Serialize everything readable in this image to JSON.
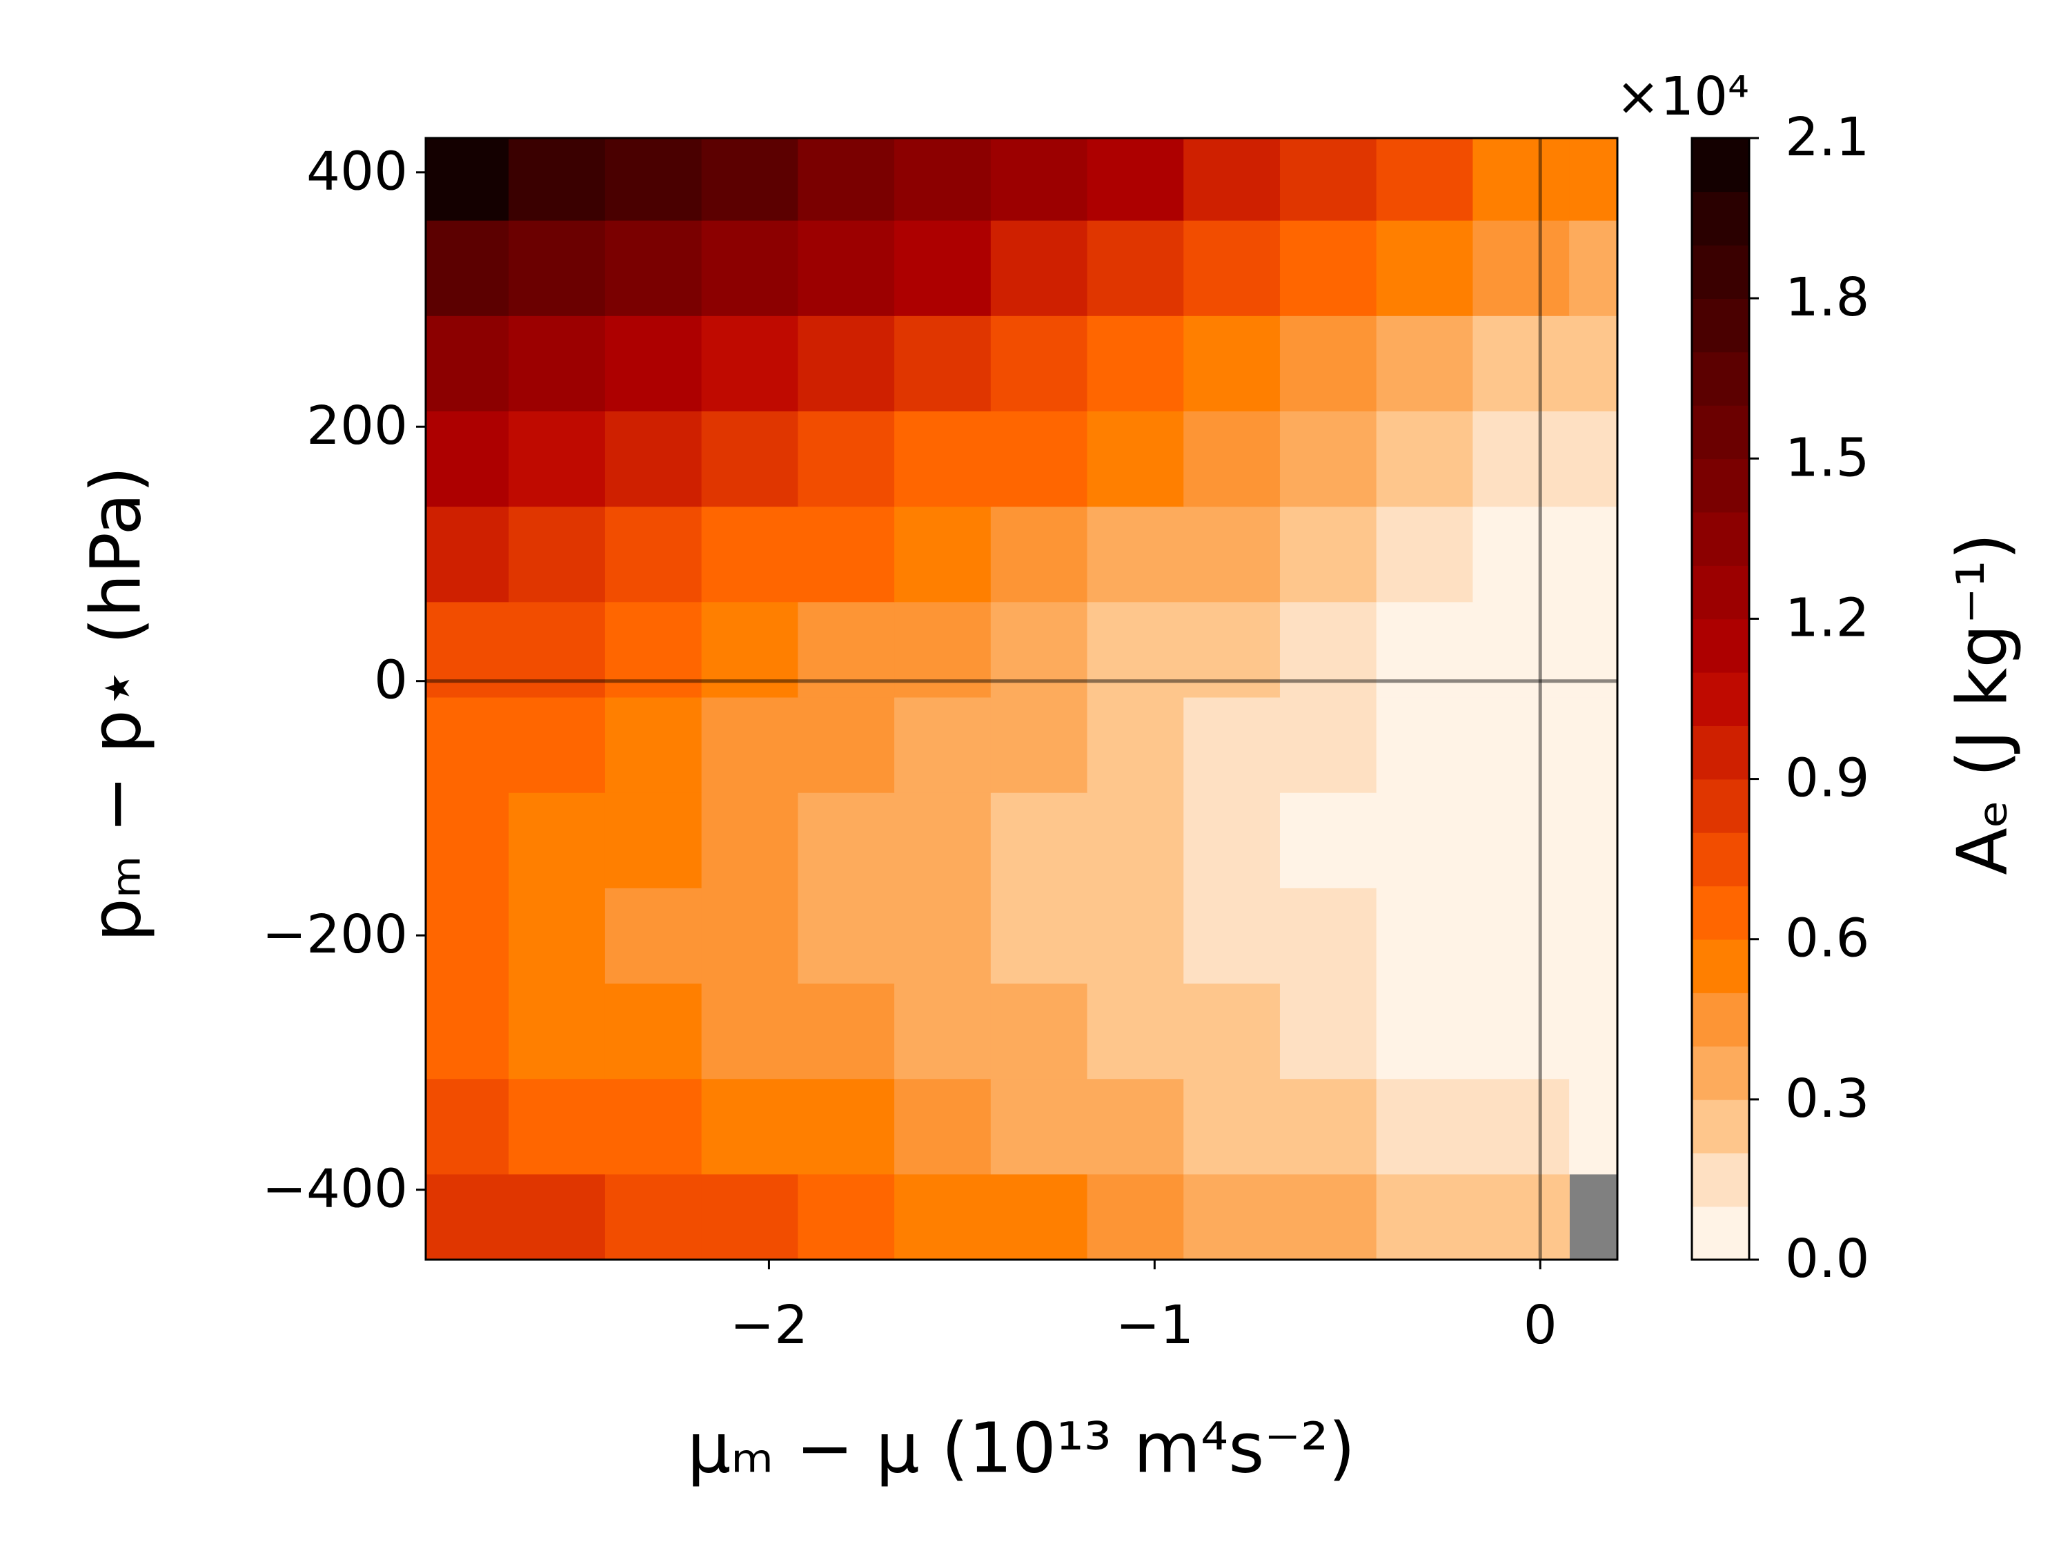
{
  "chart_data": {
    "type": "contourf",
    "xlabel": "μₘ − μ (10¹³ m⁴s⁻²)",
    "ylabel": "pₘ − p⋆  (hPa)",
    "colorbar_label": "Aₑ (J kg⁻¹)",
    "colorbar_offset": "×10⁴",
    "x": [
      -2.8,
      -2.55,
      -2.3,
      -2.05,
      -1.8,
      -1.55,
      -1.3,
      -1.05,
      -0.8,
      -0.55,
      -0.3,
      -0.05,
      0.2
    ],
    "y": [
      -425,
      -350,
      -275,
      -200,
      -125,
      -50,
      25,
      100,
      175,
      250,
      325,
      400
    ],
    "z": [
      [
        0.88,
        0.82,
        0.76,
        0.7,
        0.63,
        0.57,
        0.51,
        0.45,
        0.38,
        0.32,
        0.26,
        0.2,
        null
      ],
      [
        0.74,
        0.68,
        0.63,
        0.57,
        0.51,
        0.45,
        0.39,
        0.34,
        0.28,
        0.22,
        0.16,
        0.1,
        0.09
      ],
      [
        0.65,
        0.59,
        0.54,
        0.48,
        0.43,
        0.37,
        0.31,
        0.26,
        0.2,
        0.15,
        0.09,
        0.04,
        0.03
      ],
      [
        0.6,
        0.55,
        0.49,
        0.44,
        0.38,
        0.33,
        0.27,
        0.22,
        0.16,
        0.11,
        0.05,
        0.0,
        0.0
      ],
      [
        0.61,
        0.55,
        0.5,
        0.44,
        0.38,
        0.32,
        0.27,
        0.21,
        0.15,
        0.09,
        0.04,
        0.0,
        0.0
      ],
      [
        0.66,
        0.6,
        0.54,
        0.48,
        0.42,
        0.36,
        0.3,
        0.23,
        0.17,
        0.11,
        0.05,
        0.0,
        0.0
      ],
      [
        0.76,
        0.7,
        0.63,
        0.56,
        0.49,
        0.43,
        0.36,
        0.29,
        0.23,
        0.16,
        0.09,
        0.02,
        0.01
      ],
      [
        0.91,
        0.84,
        0.76,
        0.69,
        0.61,
        0.54,
        0.46,
        0.39,
        0.31,
        0.23,
        0.16,
        0.08,
        0.07
      ],
      [
        1.12,
        1.03,
        0.94,
        0.86,
        0.77,
        0.69,
        0.6,
        0.51,
        0.43,
        0.34,
        0.26,
        0.17,
        0.15
      ],
      [
        1.36,
        1.27,
        1.17,
        1.07,
        0.97,
        0.87,
        0.77,
        0.67,
        0.58,
        0.48,
        0.38,
        0.28,
        0.26
      ],
      [
        1.66,
        1.55,
        1.44,
        1.32,
        1.21,
        1.1,
        0.98,
        0.87,
        0.76,
        0.64,
        0.53,
        0.42,
        0.39
      ],
      [
        2.01,
        1.88,
        1.75,
        1.62,
        1.49,
        1.36,
        1.23,
        1.1,
        0.97,
        0.84,
        0.71,
        0.58,
        0.55
      ]
    ],
    "levels": [
      0,
      0.1,
      0.2,
      0.3,
      0.4,
      0.5,
      0.6,
      0.7,
      0.8,
      0.9,
      1.0,
      1.1,
      1.2,
      1.3,
      1.4,
      1.5,
      1.6,
      1.7,
      1.8,
      1.9,
      2.0,
      2.1
    ],
    "colors": [
      "#fff3e6",
      "#fee0c2",
      "#fec68c",
      "#fdab5c",
      "#fd9535",
      "#ff7f00",
      "#ff6600",
      "#f24d00",
      "#e03600",
      "#cf2000",
      "#bf0a00",
      "#ad0000",
      "#9c0000",
      "#8c0000",
      "#7a0000",
      "#6b0000",
      "#5c0000",
      "#4a0000",
      "#3a0000",
      "#2a0000",
      "#140000"
    ],
    "nan_color": "#808080",
    "xlim": [
      -2.89,
      0.2
    ],
    "ylim": [
      -455,
      427
    ],
    "xticks": [
      {
        "value": -2,
        "label": "−2"
      },
      {
        "value": -1,
        "label": "−1"
      },
      0
    ],
    "yticks": [
      {
        "value": -400,
        "label": "−400"
      },
      {
        "value": -200,
        "label": "−200"
      },
      0,
      200,
      400
    ],
    "cticks": [
      {
        "value": 0,
        "label": "0.0"
      },
      0.3,
      0.6,
      0.9,
      1.2,
      1.5,
      1.8,
      2.1
    ],
    "axvline": 0,
    "axhline": 0
  }
}
